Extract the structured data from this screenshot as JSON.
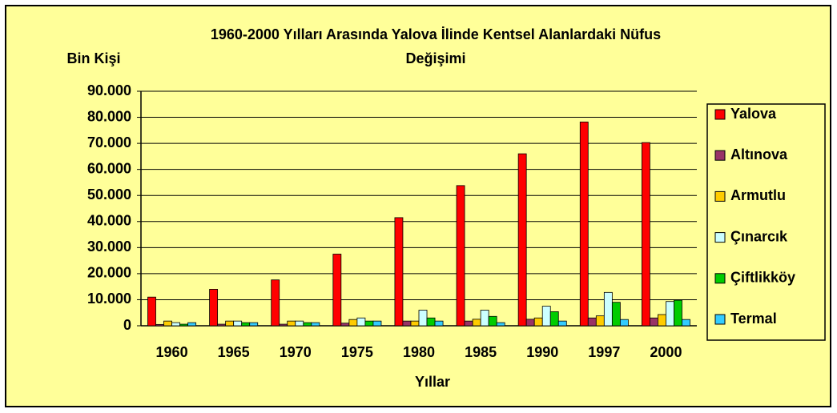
{
  "chart_data": {
    "type": "bar",
    "title": [
      "1960-2000 Yılları Arasında Yalova İlinde Kentsel Alanlardaki Nüfus",
      "Değişimi"
    ],
    "y_label": "Bin Kişi",
    "x_label": "Yıllar",
    "categories": [
      "1960",
      "1965",
      "1970",
      "1975",
      "1980",
      "1985",
      "1990",
      "1997",
      "2000"
    ],
    "series": [
      {
        "name": "Yalova",
        "color": "#ff0000",
        "values": [
          11000,
          14000,
          17600,
          27500,
          41500,
          53800,
          66000,
          78200,
          70300
        ]
      },
      {
        "name": "Altınova",
        "color": "#993366",
        "values": [
          500,
          600,
          600,
          1000,
          1800,
          1800,
          2500,
          3000,
          3000
        ]
      },
      {
        "name": "Armutlu",
        "color": "#ffcc00",
        "values": [
          1800,
          1800,
          1800,
          2400,
          1800,
          2500,
          3000,
          3800,
          4300
        ]
      },
      {
        "name": "Çınarcık",
        "color": "#ccffff",
        "values": [
          1200,
          1800,
          1800,
          3000,
          6000,
          6000,
          7500,
          12800,
          9300
        ]
      },
      {
        "name": "Çiftlikköy",
        "color": "#00cc00",
        "values": [
          600,
          1200,
          1200,
          1800,
          3000,
          3600,
          5400,
          9000,
          9800
        ]
      },
      {
        "name": "Termal",
        "color": "#33ccff",
        "values": [
          1200,
          1200,
          1200,
          1800,
          1800,
          1200,
          1800,
          2400,
          2400
        ]
      }
    ],
    "ylim": [
      0,
      90000
    ],
    "yticks": [
      0,
      {
        "value": 10000,
        "label": "10.000"
      },
      {
        "value": 20000,
        "label": "20.000"
      },
      {
        "value": 30000,
        "label": "30.000"
      },
      {
        "value": 40000,
        "label": "40.000"
      },
      {
        "value": 50000,
        "label": "50.000"
      },
      {
        "value": 60000,
        "label": "60.000"
      },
      {
        "value": 70000,
        "label": "70.000"
      },
      {
        "value": 80000,
        "label": "80.000"
      },
      {
        "value": 90000,
        "label": "90.000"
      }
    ],
    "grid": true,
    "legend": "right"
  }
}
